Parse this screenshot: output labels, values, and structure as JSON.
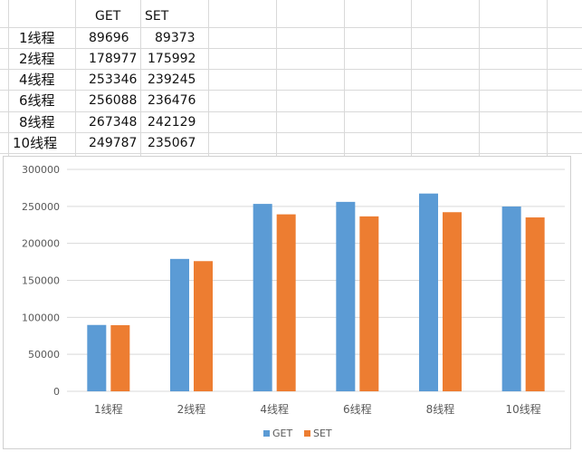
{
  "table": {
    "headers": [
      "",
      "GET",
      "SET"
    ],
    "rows": [
      {
        "label": "1线程",
        "get": "89696",
        "set": "89373"
      },
      {
        "label": "2线程",
        "get": "178977",
        "set": "175992"
      },
      {
        "label": "4线程",
        "get": "253346",
        "set": "239245"
      },
      {
        "label": "6线程",
        "get": "256088",
        "set": "236476"
      },
      {
        "label": "8线程",
        "get": "267348",
        "set": "242129"
      },
      {
        "label": "10线程",
        "get": "249787",
        "set": "235067"
      }
    ]
  },
  "chart_data": {
    "type": "bar",
    "categories": [
      "1线程",
      "2线程",
      "4线程",
      "6线程",
      "8线程",
      "10线程"
    ],
    "series": [
      {
        "name": "GET",
        "color": "#5b9bd5",
        "values": [
          89696,
          178977,
          253346,
          256088,
          267348,
          249787
        ]
      },
      {
        "name": "SET",
        "color": "#ed7d31",
        "values": [
          89373,
          175992,
          239245,
          236476,
          242129,
          235067
        ]
      }
    ],
    "title": "",
    "xlabel": "",
    "ylabel": "",
    "ylim": [
      0,
      300000
    ],
    "yticks": [
      "0",
      "50000",
      "100000",
      "150000",
      "200000",
      "250000",
      "300000"
    ],
    "grid": true,
    "legend": "bottom"
  }
}
